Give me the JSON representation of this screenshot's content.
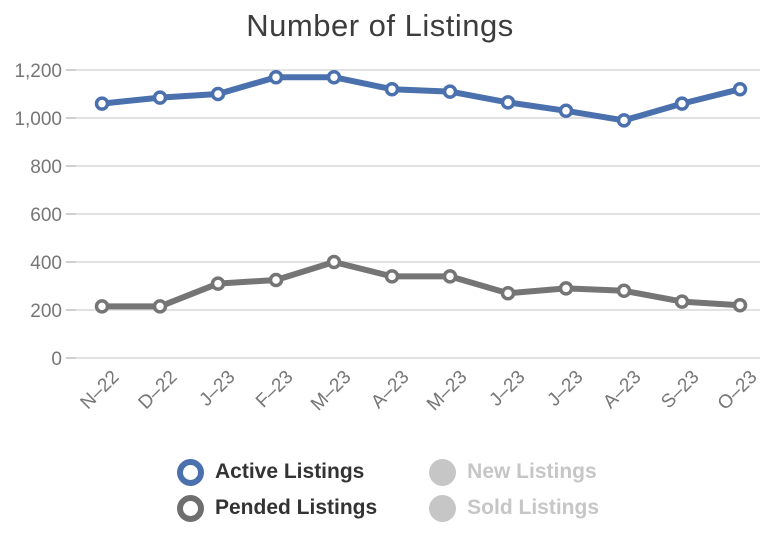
{
  "chart_data": {
    "type": "line",
    "title": "Number of Listings",
    "categories": [
      "N–22",
      "D–22",
      "J–23",
      "F–23",
      "M–23",
      "A–23",
      "M–23",
      "J–23",
      "J–23",
      "A–23",
      "S–23",
      "O–23"
    ],
    "series": [
      {
        "name": "Active Listings",
        "color": "#4a71ad",
        "values": [
          1060,
          1085,
          1100,
          1170,
          1170,
          1120,
          1110,
          1065,
          1030,
          990,
          1060,
          1120
        ]
      },
      {
        "name": "Pended Listings",
        "color": "#757575",
        "values": [
          215,
          215,
          310,
          325,
          400,
          340,
          340,
          270,
          290,
          280,
          235,
          220
        ]
      }
    ],
    "hidden_series": [
      "New Listings",
      "Sold Listings"
    ],
    "xlabel": "",
    "ylabel": "",
    "ylim": [
      0,
      1200
    ],
    "ytick_labels": [
      "0",
      "200",
      "400",
      "600",
      "800",
      "1,000",
      "1,200"
    ],
    "grid": true,
    "legend_position": "bottom"
  },
  "legend": {
    "items": [
      {
        "label": "Active Listings",
        "color": "#4a71ad",
        "enabled": true
      },
      {
        "label": "Pended Listings",
        "color": "#6f6f6f",
        "enabled": true
      },
      {
        "label": "New Listings",
        "color": "#c6c6c6",
        "enabled": false
      },
      {
        "label": "Sold Listings",
        "color": "#c6c6c6",
        "enabled": false
      }
    ]
  },
  "colors": {
    "title": "#3d3d3d",
    "axis_label": "#767676",
    "grid": "#e2e2e2",
    "tick": "#cfcfcf",
    "marker_fill": "#ffffff",
    "legend_text": "#333333",
    "legend_disabled": "#c6c6c6",
    "background": "#ffffff"
  }
}
